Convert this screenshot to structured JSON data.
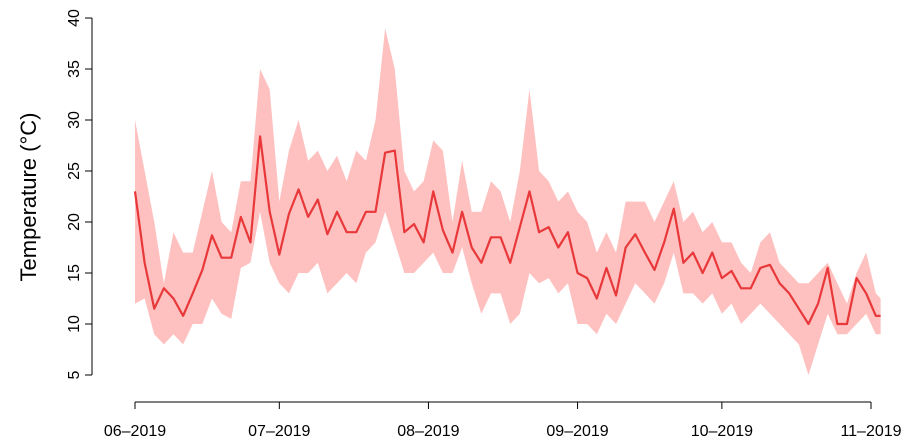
{
  "chart_data": {
    "type": "line",
    "ylabel": "Temperature (°C)",
    "x": [
      0,
      2,
      4,
      6,
      8,
      10,
      12,
      14,
      16,
      18,
      20,
      22,
      24,
      26,
      28,
      30,
      32,
      34,
      36,
      38,
      40,
      42,
      44,
      46,
      48,
      50,
      52,
      54,
      56,
      58,
      60,
      62,
      64,
      66,
      68,
      70,
      72,
      74,
      76,
      78,
      80,
      82,
      84,
      86,
      88,
      90,
      92,
      94,
      96,
      98,
      100,
      102,
      104,
      106,
      108,
      110,
      112,
      114,
      116,
      118,
      120,
      122,
      124,
      126,
      128,
      130,
      132,
      134,
      136,
      138,
      140,
      142,
      144,
      146,
      148,
      150,
      152,
      154,
      155
    ],
    "values": [
      23,
      16,
      11.5,
      13.5,
      12.5,
      10.8,
      13,
      15.3,
      18.7,
      16.5,
      16.5,
      20.5,
      18,
      28.4,
      21,
      16.8,
      20.8,
      23.2,
      20.5,
      22.2,
      18.8,
      21,
      19,
      19,
      21,
      21,
      26.8,
      27,
      19,
      19.8,
      18,
      23,
      19.2,
      17,
      21,
      17.5,
      16,
      18.5,
      18.5,
      16,
      19.5,
      23,
      19,
      19.5,
      17.5,
      19,
      15,
      14.5,
      12.5,
      15.5,
      12.8,
      17.5,
      18.8,
      17,
      15.3,
      18,
      21.3,
      16,
      17,
      15,
      17,
      14.5,
      15.2,
      13.5,
      13.5,
      15.5,
      15.8,
      14,
      13,
      11.5,
      10,
      12,
      15.5,
      10,
      10,
      14.5,
      13,
      10.8,
      10.8
    ],
    "lower": [
      12,
      12.5,
      9,
      8,
      9,
      8,
      10,
      10,
      12.5,
      11,
      10.5,
      15.5,
      16,
      21,
      16,
      14,
      13,
      15,
      15,
      16,
      13,
      14,
      15,
      14,
      17,
      18,
      21,
      18,
      15,
      15,
      16,
      17,
      15,
      15,
      17.5,
      14,
      11,
      13,
      13,
      10,
      11,
      15,
      14,
      14.5,
      13,
      14,
      10,
      10,
      9,
      11,
      10,
      12,
      14,
      13,
      12,
      14,
      17,
      13,
      13,
      12,
      13,
      11,
      12,
      10,
      11,
      12,
      11,
      10,
      9,
      8,
      5,
      8,
      11,
      9,
      9,
      10,
      11,
      9,
      9
    ],
    "upper": [
      30,
      25,
      20,
      14,
      19,
      17,
      17,
      21,
      25,
      20,
      19,
      24,
      24,
      35,
      33,
      22,
      27,
      30,
      26,
      27,
      25,
      26.5,
      24,
      27,
      26,
      30,
      39,
      35,
      25,
      23,
      24,
      28,
      27,
      20,
      26,
      21,
      21,
      24,
      23,
      20,
      25,
      33,
      25,
      24,
      22,
      23,
      21,
      20,
      17,
      19,
      17,
      22,
      22,
      22,
      20,
      22,
      24,
      20,
      21,
      19,
      20,
      18,
      18,
      16,
      15,
      18,
      19,
      16,
      15,
      14,
      14,
      15,
      16,
      14,
      12,
      15,
      17,
      13,
      12.5
    ],
    "color": "#e8383a",
    "band_color": "#ffc0c0",
    "xlim": [
      0,
      153
    ],
    "xticks": [
      {
        "value": 0,
        "label": "06–2019"
      },
      {
        "value": 30,
        "label": "07–2019"
      },
      {
        "value": 61,
        "label": "08–2019"
      },
      {
        "value": 92,
        "label": "09–2019"
      },
      {
        "value": 122,
        "label": "10–2019"
      },
      {
        "value": 153,
        "label": "11–2019"
      }
    ],
    "ylim": [
      5,
      40
    ],
    "yticks": [
      5,
      10,
      15,
      20,
      25,
      30,
      35,
      40
    ]
  }
}
